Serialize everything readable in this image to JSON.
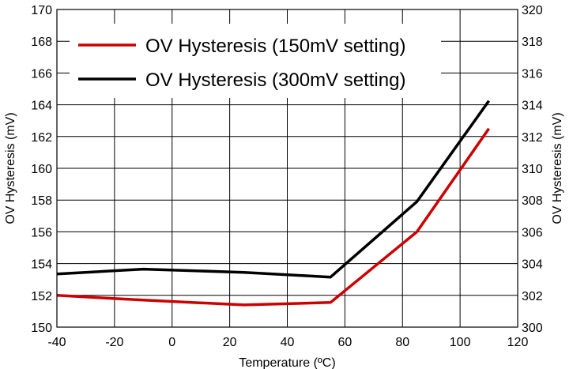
{
  "chart_data": {
    "type": "line",
    "title": "",
    "xlabel": "Temperature (ºC)",
    "ylabel_left": "OV Hysteresis (mV)",
    "ylabel_right": "OV Hysteresis (mV)",
    "xlim": [
      -40,
      120
    ],
    "ylim_left": [
      150,
      170
    ],
    "ylim_right": [
      300,
      320
    ],
    "x_ticks": [
      "-40",
      "-20",
      "0",
      "20",
      "40",
      "60",
      "80",
      "100",
      "120"
    ],
    "y_left_ticks": [
      "150",
      "152",
      "154",
      "156",
      "158",
      "160",
      "162",
      "164",
      "166",
      "168",
      "170"
    ],
    "y_right_ticks": [
      "300",
      "302",
      "304",
      "306",
      "308",
      "310",
      "312",
      "314",
      "316",
      "318",
      "320"
    ],
    "grid": true,
    "legend_position": "top-left",
    "series": [
      {
        "name": "OV Hysteresis (150mV setting)",
        "axis": "left",
        "color": "#cc0000",
        "x": [
          -40,
          -10,
          25,
          55,
          85,
          110
        ],
        "values": [
          152.0,
          151.7,
          151.4,
          151.55,
          156.0,
          162.5
        ]
      },
      {
        "name": "OV Hysteresis (300mV setting)",
        "axis": "right",
        "color": "#000000",
        "x": [
          -40,
          -10,
          25,
          55,
          85,
          110
        ],
        "values": [
          303.35,
          303.65,
          303.45,
          303.15,
          307.9,
          314.25
        ]
      }
    ]
  }
}
